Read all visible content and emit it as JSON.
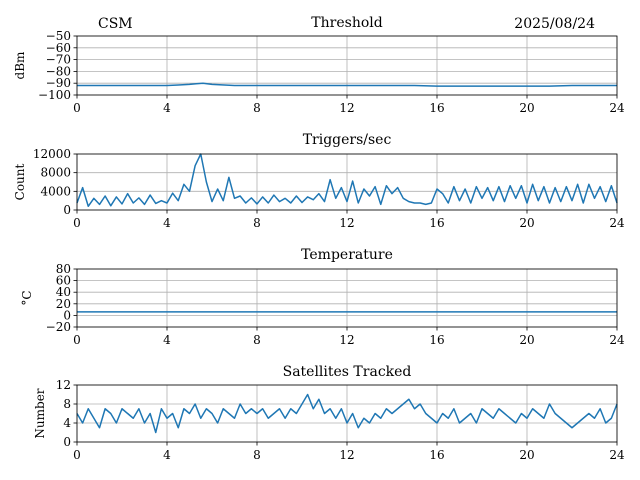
{
  "header": {
    "left": "CSM",
    "right": "2025/08/24"
  },
  "colors": {
    "series": "#1f77b4",
    "grid": "#b0b0b0"
  },
  "chart_data": [
    {
      "type": "line",
      "title": "Threshold",
      "xlabel": "",
      "ylabel": "dBm",
      "xlim": [
        0,
        24
      ],
      "ylim": [
        -100,
        -50
      ],
      "xticks": [
        0,
        4,
        8,
        12,
        16,
        20,
        24
      ],
      "yticks": [
        -100,
        -90,
        -80,
        -70,
        -60,
        -50
      ],
      "grid": true,
      "series": [
        {
          "x": [
            0,
            1,
            2,
            3,
            4,
            4.5,
            5,
            5.3,
            5.6,
            6,
            7,
            8,
            9,
            10,
            11,
            12,
            13,
            14,
            15,
            16,
            17,
            18,
            19,
            20,
            21,
            22,
            23,
            24
          ],
          "values": [
            -92,
            -92,
            -92,
            -92,
            -92,
            -91.5,
            -91,
            -90.5,
            -90,
            -91,
            -92,
            -92,
            -92,
            -92,
            -92,
            -92,
            -92,
            -92,
            -92,
            -92.5,
            -92.5,
            -92.5,
            -92.5,
            -92.5,
            -92.5,
            -92,
            -92,
            -92
          ]
        }
      ]
    },
    {
      "type": "line",
      "title": "Triggers/sec",
      "xlabel": "",
      "ylabel": "Count",
      "xlim": [
        0,
        24
      ],
      "ylim": [
        0,
        12000
      ],
      "xticks": [
        0,
        4,
        8,
        12,
        16,
        20,
        24
      ],
      "yticks": [
        0,
        4000,
        8000,
        12000
      ],
      "grid": true,
      "series": [
        {
          "x": [
            0,
            0.25,
            0.5,
            0.75,
            1,
            1.25,
            1.5,
            1.75,
            2,
            2.25,
            2.5,
            2.75,
            3,
            3.25,
            3.5,
            3.75,
            4,
            4.25,
            4.5,
            4.75,
            5,
            5.25,
            5.5,
            5.75,
            6,
            6.25,
            6.5,
            6.75,
            7,
            7.25,
            7.5,
            7.75,
            8,
            8.25,
            8.5,
            8.75,
            9,
            9.25,
            9.5,
            9.75,
            10,
            10.25,
            10.5,
            10.75,
            11,
            11.25,
            11.5,
            11.75,
            12,
            12.25,
            12.5,
            12.75,
            13,
            13.25,
            13.5,
            13.75,
            14,
            14.25,
            14.5,
            14.75,
            15,
            15.25,
            15.5,
            15.75,
            16,
            16.25,
            16.5,
            16.75,
            17,
            17.25,
            17.5,
            17.75,
            18,
            18.25,
            18.5,
            18.75,
            19,
            19.25,
            19.5,
            19.75,
            20,
            20.25,
            20.5,
            20.75,
            21,
            21.25,
            21.5,
            21.75,
            22,
            22.25,
            22.5,
            22.75,
            23,
            23.25,
            23.5,
            23.75,
            24
          ],
          "values": [
            1500,
            4800,
            800,
            2500,
            1200,
            3000,
            900,
            2800,
            1300,
            3500,
            1500,
            2600,
            1200,
            3200,
            1400,
            2000,
            1500,
            3600,
            2000,
            5500,
            4000,
            9500,
            12000,
            6000,
            1800,
            4500,
            2000,
            7000,
            2500,
            3000,
            1500,
            2600,
            1300,
            2800,
            1500,
            3200,
            1800,
            2500,
            1500,
            3000,
            1600,
            2800,
            2200,
            3500,
            1800,
            6500,
            2500,
            4800,
            1800,
            6200,
            1500,
            4500,
            3000,
            5000,
            1200,
            5200,
            3500,
            4800,
            2500,
            1800,
            1500,
            1500,
            1200,
            1500,
            4500,
            3500,
            1500,
            5000,
            2000,
            4500,
            1500,
            5000,
            2500,
            4800,
            2000,
            5000,
            1800,
            5200,
            2500,
            5200,
            1500,
            5500,
            2000,
            5000,
            1500,
            4800,
            1800,
            5000,
            2000,
            5500,
            1500,
            5500,
            2500,
            5000,
            1800,
            5200,
            1500
          ]
        }
      ]
    },
    {
      "type": "line",
      "title": "Temperature",
      "xlabel": "",
      "ylabel": "°C",
      "xlim": [
        0,
        24
      ],
      "ylim": [
        -20,
        80
      ],
      "xticks": [
        0,
        4,
        8,
        12,
        16,
        20,
        24
      ],
      "yticks": [
        -20,
        0,
        20,
        40,
        60,
        80
      ],
      "grid": true,
      "series": [
        {
          "x": [
            0,
            24
          ],
          "values": [
            6,
            6
          ]
        }
      ]
    },
    {
      "type": "line",
      "title": "Satellites Tracked",
      "xlabel": "",
      "ylabel": "Number",
      "xlim": [
        0,
        24
      ],
      "ylim": [
        0,
        12
      ],
      "xticks": [
        0,
        4,
        8,
        12,
        16,
        20,
        24
      ],
      "yticks": [
        0,
        4,
        8,
        12
      ],
      "grid": true,
      "series": [
        {
          "x": [
            0,
            0.25,
            0.5,
            0.75,
            1,
            1.25,
            1.5,
            1.75,
            2,
            2.25,
            2.5,
            2.75,
            3,
            3.25,
            3.5,
            3.75,
            4,
            4.25,
            4.5,
            4.75,
            5,
            5.25,
            5.5,
            5.75,
            6,
            6.25,
            6.5,
            6.75,
            7,
            7.25,
            7.5,
            7.75,
            8,
            8.25,
            8.5,
            8.75,
            9,
            9.25,
            9.5,
            9.75,
            10,
            10.25,
            10.5,
            10.75,
            11,
            11.25,
            11.5,
            11.75,
            12,
            12.25,
            12.5,
            12.75,
            13,
            13.25,
            13.5,
            13.75,
            14,
            14.25,
            14.5,
            14.75,
            15,
            15.25,
            15.5,
            15.75,
            16,
            16.25,
            16.5,
            16.75,
            17,
            17.25,
            17.5,
            17.75,
            18,
            18.25,
            18.5,
            18.75,
            19,
            19.25,
            19.5,
            19.75,
            20,
            20.25,
            20.5,
            20.75,
            21,
            21.25,
            21.5,
            21.75,
            22,
            22.25,
            22.5,
            22.75,
            23,
            23.25,
            23.5,
            23.75,
            24
          ],
          "values": [
            6,
            4,
            7,
            5,
            3,
            7,
            6,
            4,
            7,
            6,
            5,
            7,
            4,
            6,
            2,
            7,
            5,
            6,
            3,
            7,
            6,
            8,
            5,
            7,
            6,
            4,
            7,
            6,
            5,
            8,
            6,
            7,
            6,
            7,
            5,
            6,
            7,
            5,
            7,
            6,
            8,
            10,
            7,
            9,
            6,
            7,
            5,
            7,
            4,
            6,
            3,
            5,
            4,
            6,
            5,
            7,
            6,
            7,
            8,
            9,
            7,
            8,
            6,
            5,
            4,
            6,
            5,
            7,
            4,
            5,
            6,
            4,
            7,
            6,
            5,
            7,
            6,
            5,
            4,
            6,
            5,
            7,
            6,
            5,
            8,
            6,
            5,
            4,
            3,
            4,
            5,
            6,
            5,
            7,
            4,
            5,
            8
          ]
        }
      ]
    }
  ]
}
